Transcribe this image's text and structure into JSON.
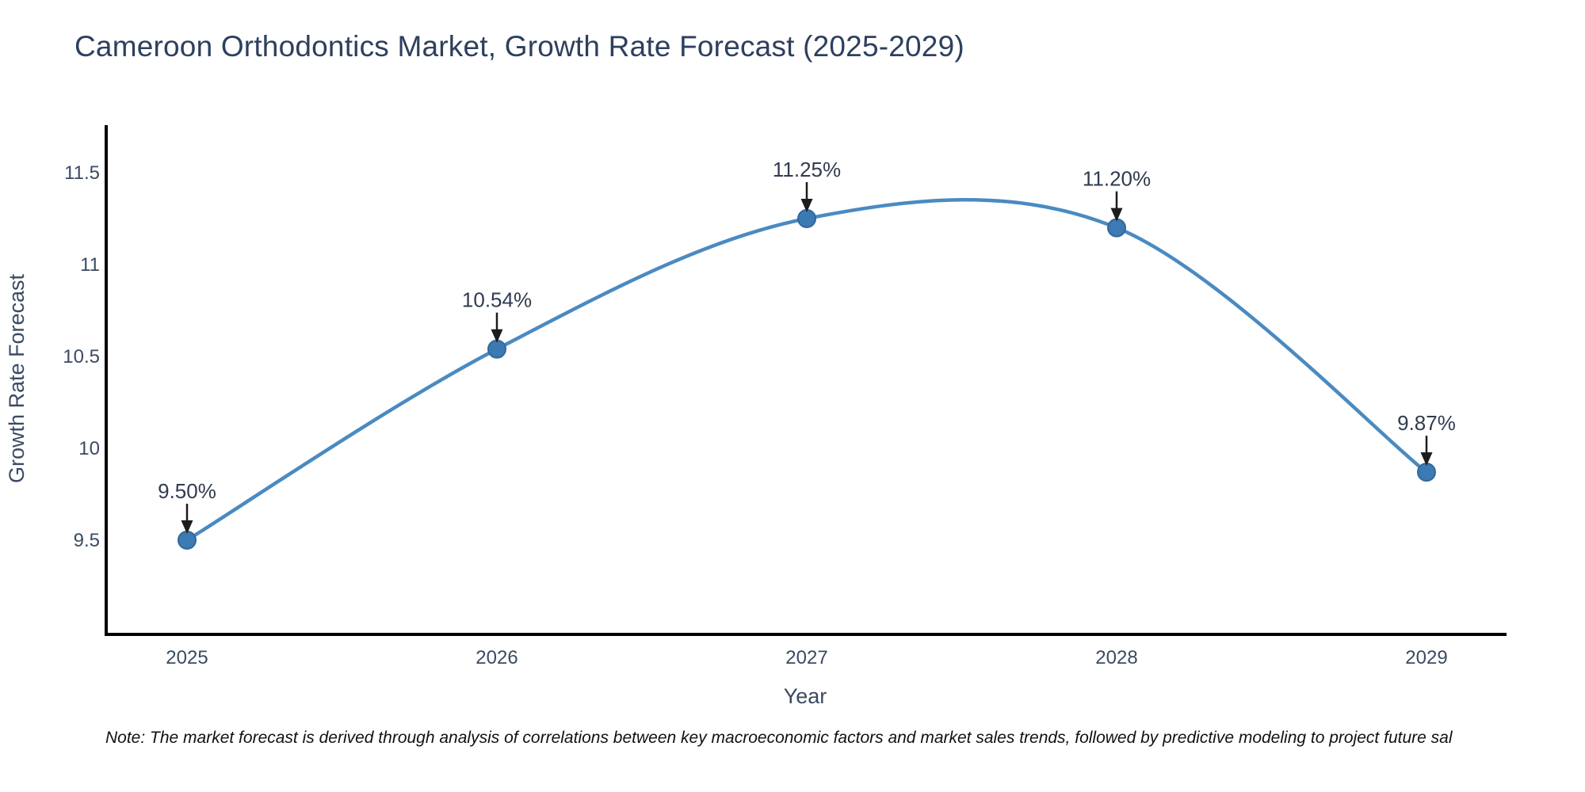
{
  "title": "Cameroon Orthodontics Market, Growth Rate Forecast (2025-2029)",
  "footnote": "Note: The market forecast is derived through analysis of correlations between key macroeconomic factors and market sales trends, followed by predictive modeling to project future sal",
  "colors": {
    "line": "#4a8ac1",
    "marker_fill": "#3c7ab3",
    "marker_border": "#30689c",
    "axis": "#000000",
    "tick_text": "#3a4a63",
    "annotation_text": "#2f3b4f",
    "arrow": "#1c1c1c",
    "title_text": "#2e3f5e",
    "background": "#ffffff"
  },
  "chart_data": {
    "type": "line",
    "line_shape": "spline",
    "title": "Cameroon Orthodontics Market, Growth Rate Forecast (2025-2029)",
    "xlabel": "Year",
    "ylabel": "Growth Rate Forecast",
    "categories": [
      "2025",
      "2026",
      "2027",
      "2028",
      "2029"
    ],
    "x": [
      2025,
      2026,
      2027,
      2028,
      2029
    ],
    "values": [
      9.5,
      10.54,
      11.25,
      11.2,
      9.87
    ],
    "point_labels": [
      "9.50%",
      "10.54%",
      "11.25%",
      "11.20%",
      "9.87%"
    ],
    "y_ticks": [
      9.5,
      10,
      10.5,
      11,
      11.5
    ],
    "y_tick_labels": [
      "9.5",
      "10",
      "10.5",
      "11",
      "11.5"
    ],
    "x_tick_labels": [
      "2025",
      "2026",
      "2027",
      "2028",
      "2029"
    ],
    "ylim": [
      8.99,
      11.75
    ],
    "grid": false,
    "legend": false,
    "annotations": "black arrow pointing down from each value label to its data point"
  }
}
